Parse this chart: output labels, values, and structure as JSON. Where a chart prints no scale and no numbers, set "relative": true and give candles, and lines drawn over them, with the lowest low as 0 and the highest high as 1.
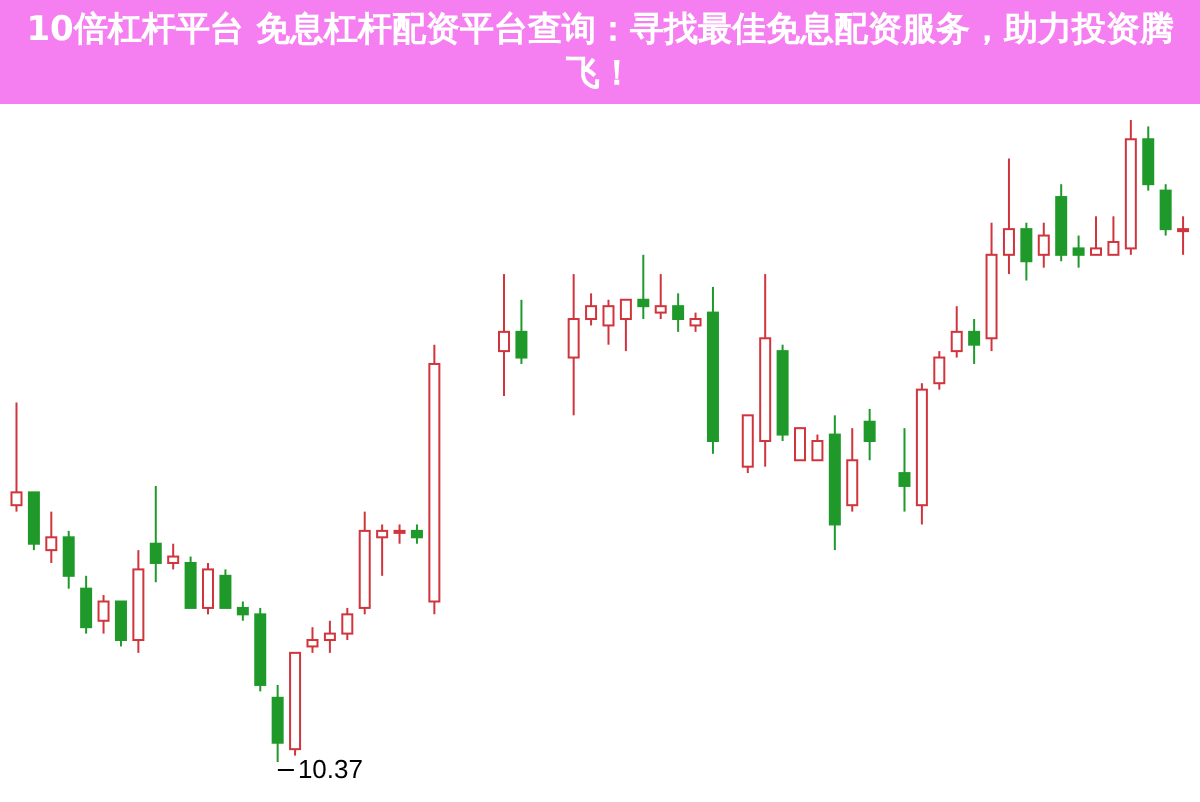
{
  "chart_data": {
    "type": "candlestick",
    "title": "10倍杠杆平台 免息杠杆配资平台查询：寻找最佳免息配资服务，助力投资腾飞！",
    "relative": true,
    "tick_labels": false,
    "categories": [
      null,
      null,
      null,
      null,
      null,
      null,
      null,
      null,
      null,
      null,
      null,
      null,
      null,
      null,
      null,
      null,
      null,
      null,
      null,
      null,
      null,
      null,
      null,
      null,
      null,
      null,
      null,
      null,
      null,
      null,
      null,
      null,
      null,
      null,
      null,
      null,
      null,
      null,
      null,
      null,
      null,
      null,
      null,
      null,
      null,
      null,
      null,
      null,
      null,
      null,
      null,
      null,
      null,
      null,
      null,
      null,
      null,
      null,
      null,
      null,
      null,
      null,
      null,
      null,
      null,
      null,
      null,
      null
    ],
    "ohlc": [
      [
        0.4,
        0.56,
        0.39,
        0.42
      ],
      [
        0.42,
        0.42,
        0.33,
        0.34
      ],
      [
        0.33,
        0.39,
        0.31,
        0.35
      ],
      [
        0.35,
        0.36,
        0.27,
        0.29
      ],
      [
        0.27,
        0.29,
        0.2,
        0.21
      ],
      [
        0.22,
        0.26,
        0.2,
        0.25
      ],
      [
        0.25,
        0.25,
        0.18,
        0.19
      ],
      [
        0.19,
        0.33,
        0.17,
        0.3
      ],
      [
        0.34,
        0.43,
        0.28,
        0.31
      ],
      [
        0.31,
        0.34,
        0.3,
        0.32
      ],
      [
        0.31,
        0.32,
        0.24,
        0.24
      ],
      [
        0.24,
        0.31,
        0.23,
        0.3
      ],
      [
        0.29,
        0.3,
        0.24,
        0.24
      ],
      [
        0.24,
        0.25,
        0.22,
        0.23
      ],
      [
        0.23,
        0.24,
        0.11,
        0.12
      ],
      [
        0.1,
        0.12,
        0,
        0.03
      ],
      [
        0.02,
        0.17,
        0.01,
        0.17
      ],
      [
        0.18,
        0.21,
        0.17,
        0.19
      ],
      [
        0.19,
        0.22,
        0.17,
        0.2
      ],
      [
        0.2,
        0.24,
        0.19,
        0.23
      ],
      [
        0.24,
        0.39,
        0.23,
        0.36
      ],
      [
        0.35,
        0.37,
        0.29,
        0.36
      ],
      [
        0.36,
        0.37,
        0.34,
        0.36
      ],
      [
        0.36,
        0.37,
        0.34,
        0.35
      ],
      [
        0.25,
        0.65,
        0.23,
        0.62
      ],
      null,
      null,
      null,
      [
        0.64,
        0.76,
        0.57,
        0.67
      ],
      [
        0.67,
        0.72,
        0.62,
        0.63
      ],
      null,
      null,
      [
        0.63,
        0.76,
        0.54,
        0.69
      ],
      [
        0.69,
        0.73,
        0.68,
        0.71
      ],
      [
        0.68,
        0.72,
        0.65,
        0.71
      ],
      [
        0.69,
        0.72,
        0.64,
        0.72
      ],
      [
        0.72,
        0.79,
        0.69,
        0.71
      ],
      [
        0.7,
        0.76,
        0.69,
        0.71
      ],
      [
        0.71,
        0.73,
        0.67,
        0.69
      ],
      [
        0.68,
        0.7,
        0.67,
        0.69
      ],
      [
        0.7,
        0.74,
        0.48,
        0.5
      ],
      null,
      [
        0.46,
        0.54,
        0.45,
        0.54
      ],
      [
        0.5,
        0.76,
        0.46,
        0.66
      ],
      [
        0.64,
        0.65,
        0.5,
        0.51
      ],
      [
        0.47,
        0.52,
        0.47,
        0.52
      ],
      [
        0.47,
        0.51,
        0.47,
        0.5
      ],
      [
        0.51,
        0.54,
        0.33,
        0.37
      ],
      [
        0.4,
        0.52,
        0.39,
        0.47
      ],
      [
        0.53,
        0.55,
        0.47,
        0.5
      ],
      null,
      [
        0.45,
        0.52,
        0.39,
        0.43
      ],
      [
        0.4,
        0.59,
        0.37,
        0.58
      ],
      [
        0.59,
        0.64,
        0.58,
        0.63
      ],
      [
        0.64,
        0.71,
        0.63,
        0.67
      ],
      [
        0.67,
        0.69,
        0.62,
        0.65
      ],
      [
        0.66,
        0.84,
        0.64,
        0.79
      ],
      [
        0.79,
        0.94,
        0.76,
        0.83
      ],
      [
        0.83,
        0.84,
        0.75,
        0.78
      ],
      [
        0.79,
        0.84,
        0.77,
        0.82
      ],
      [
        0.88,
        0.9,
        0.78,
        0.79
      ],
      [
        0.8,
        0.82,
        0.77,
        0.79
      ],
      [
        0.79,
        0.85,
        0.79,
        0.8
      ],
      [
        0.79,
        0.85,
        0.79,
        0.81
      ],
      [
        0.8,
        1,
        0.79,
        0.97
      ],
      [
        0.97,
        0.99,
        0.89,
        0.9
      ],
      [
        0.89,
        0.9,
        0.82,
        0.83
      ],
      [
        0.83,
        0.85,
        0.79,
        0.83
      ]
    ],
    "annotations": [
      "10.37"
    ]
  }
}
